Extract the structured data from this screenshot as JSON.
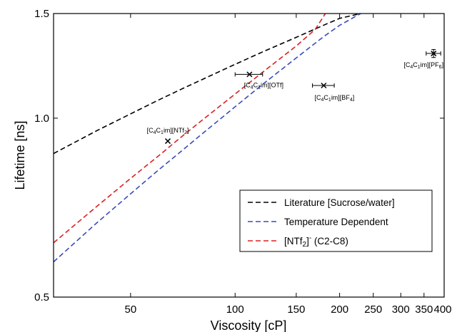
{
  "chart_data": {
    "type": "line",
    "xscale": "log",
    "yscale": "log",
    "xlabel": "Viscosity [cP]",
    "ylabel": "Lifetime [ns]",
    "xlim": [
      30,
      400
    ],
    "ylim": [
      0.5,
      1.5
    ],
    "grid": false,
    "legend_position": "bottom-right",
    "x_ticks": [
      {
        "value": 50,
        "label": "50"
      },
      {
        "value": 100,
        "label": "100"
      },
      {
        "value": 150,
        "label": "150"
      },
      {
        "value": 200,
        "label": "200"
      },
      {
        "value": 250,
        "label": "250"
      },
      {
        "value": 300,
        "label": "300"
      },
      {
        "value": 350,
        "label": "350"
      },
      {
        "value": 400,
        "label": "400"
      }
    ],
    "y_ticks": [
      {
        "value": 0.5,
        "label": "0.5"
      },
      {
        "value": 1.0,
        "label": "1.0"
      },
      {
        "value": 1.5,
        "label": "1.5"
      }
    ],
    "series": [
      {
        "name": "Literature [Sucrose/water]",
        "color": "#000000",
        "dash": true,
        "x": [
          30,
          40,
          50,
          60,
          70,
          80,
          100,
          120,
          150,
          180,
          200,
          230
        ],
        "y": [
          0.872,
          0.953,
          1.017,
          1.072,
          1.119,
          1.16,
          1.232,
          1.293,
          1.368,
          1.434,
          1.472,
          1.5
        ]
      },
      {
        "name": "Temperature Dependent",
        "color": "#3a4bb8",
        "dash": true,
        "x": [
          30,
          40,
          50,
          60,
          70,
          80,
          100,
          120,
          150,
          180,
          200,
          230
        ],
        "y": [
          0.573,
          0.667,
          0.746,
          0.817,
          0.88,
          0.939,
          1.045,
          1.14,
          1.263,
          1.372,
          1.433,
          1.5
        ]
      },
      {
        "name": "[NTf2]- (C2-C8)",
        "legend_parts": [
          "[NTf",
          "2",
          "]",
          "-",
          " (C2-C8)"
        ],
        "color": "#d92121",
        "dash": true,
        "x": [
          30,
          40,
          50,
          60,
          70,
          80,
          100,
          120,
          150,
          170,
          182
        ],
        "y": [
          0.617,
          0.711,
          0.792,
          0.863,
          0.93,
          0.99,
          1.098,
          1.195,
          1.323,
          1.41,
          1.5
        ]
      }
    ],
    "points": [
      {
        "label_parts": [
          "[C",
          "4",
          "C",
          "1",
          "im][NTf",
          "2",
          "]"
        ],
        "x": 64,
        "y": 0.915,
        "xerr": 0,
        "yerr": 0,
        "label_anchor": "above"
      },
      {
        "label_parts": [
          "[C",
          "4",
          "C",
          "1",
          "im][OTf]"
        ],
        "x": 110,
        "y": 1.185,
        "xerr": 10,
        "yerr": 0,
        "label_anchor": "below"
      },
      {
        "label_parts": [
          "[C",
          "4",
          "C",
          "1",
          "im][BF",
          "4",
          "]"
        ],
        "x": 180,
        "y": 1.135,
        "xerr": 13,
        "yerr": 0,
        "label_anchor": "below"
      },
      {
        "label_parts": [
          "[C",
          "4",
          "C",
          "1",
          "im][PF",
          "6",
          "]"
        ],
        "x": 373,
        "y": 1.285,
        "xerr": 18,
        "yerr": 0.02,
        "label_anchor": "below-left"
      }
    ]
  }
}
